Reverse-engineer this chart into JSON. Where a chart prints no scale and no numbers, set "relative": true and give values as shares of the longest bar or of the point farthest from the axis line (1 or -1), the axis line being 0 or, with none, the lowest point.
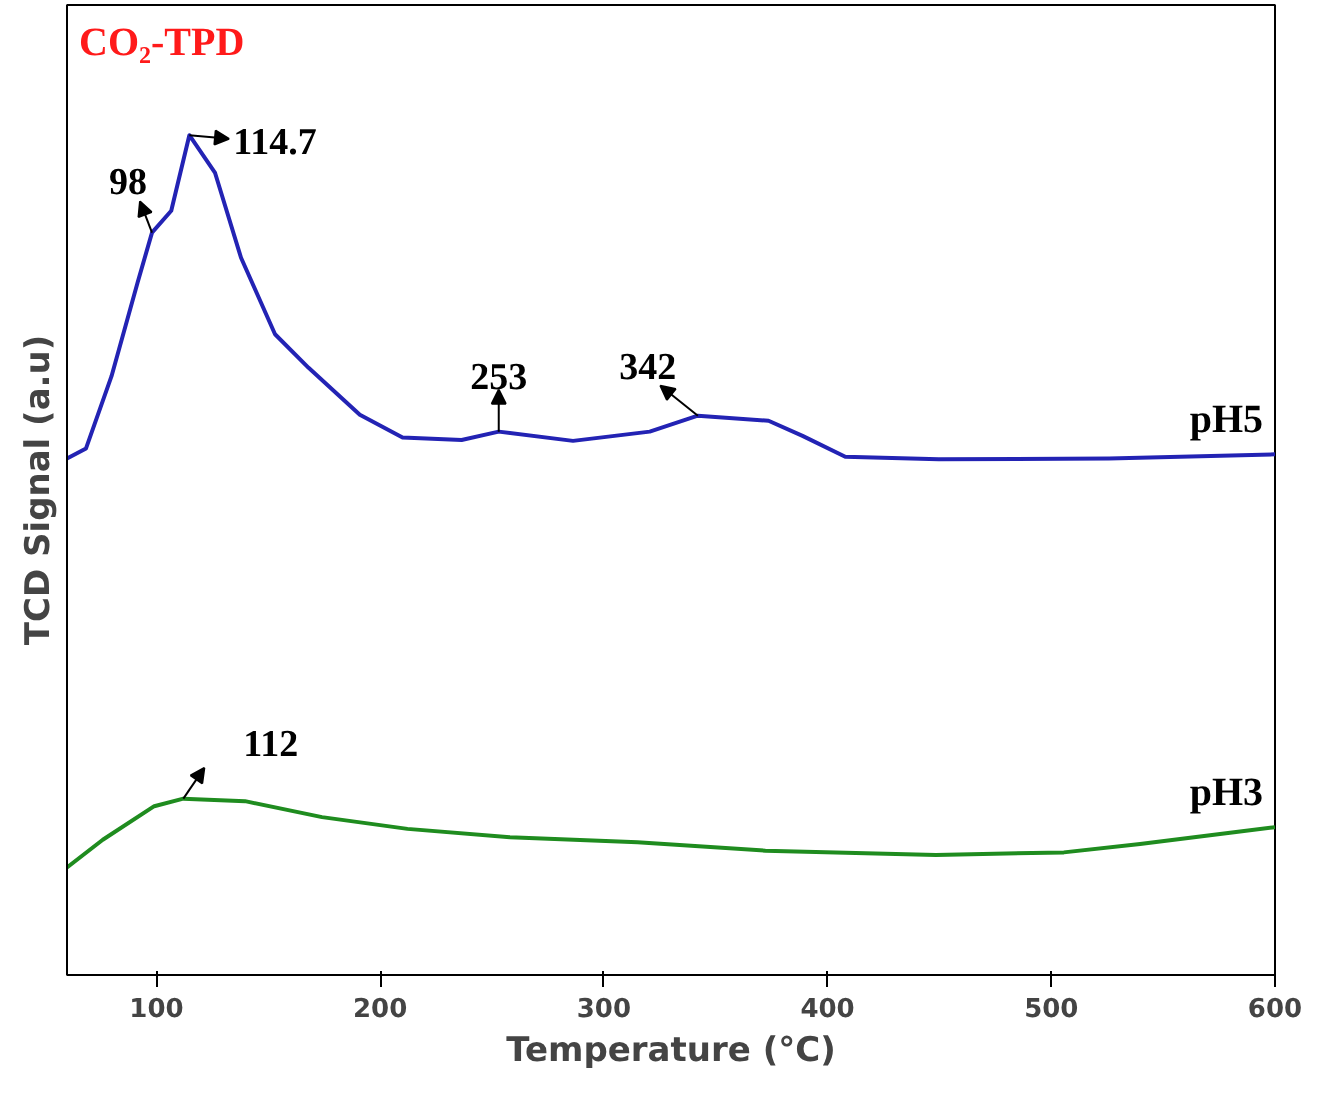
{
  "chart_data": {
    "type": "line",
    "relative": true,
    "title": "CO₂-TPD",
    "xlabel": "Temperature (°C)",
    "ylabel": "TCD Signal (a.u)",
    "xlim": [
      60,
      600
    ],
    "xticks": [
      100,
      200,
      300,
      400,
      500,
      600
    ],
    "legend": false,
    "grid": false,
    "series": [
      {
        "name": "pH5",
        "color": "#2323b4",
        "x": [
          60,
          68.5,
          79.9,
          91.5,
          98,
          106.6,
          114.7,
          126.2,
          137.8,
          153,
          168,
          190.9,
          210,
          236.4,
          253,
          286.2,
          320.5,
          342,
          373.6,
          388.8,
          407.9,
          449.7,
          525.8,
          600
        ],
        "values": [
          0.615,
          0.627,
          0.713,
          0.824,
          0.884,
          0.91,
          1.0,
          0.955,
          0.854,
          0.763,
          0.723,
          0.667,
          0.64,
          0.637,
          0.647,
          0.636,
          0.647,
          0.666,
          0.66,
          0.642,
          0.617,
          0.614,
          0.615,
          0.62
        ]
      },
      {
        "name": "pH3",
        "color": "#1f8c1f",
        "x": [
          60,
          76,
          99,
          112,
          139.6,
          174,
          212.2,
          258,
          315,
          372.2,
          448.4,
          505.6,
          539.7,
          581.7,
          600
        ],
        "values": [
          0.128,
          0.161,
          0.201,
          0.21,
          0.207,
          0.188,
          0.174,
          0.164,
          0.158,
          0.148,
          0.143,
          0.146,
          0.156,
          0.17,
          0.176
        ]
      }
    ],
    "annotations": [
      {
        "text": "98",
        "x": 98,
        "y": 0.884
      },
      {
        "text": "114.7",
        "x": 114.7,
        "y": 1.0
      },
      {
        "text": "253",
        "x": 253,
        "y": 0.647
      },
      {
        "text": "342",
        "x": 342,
        "y": 0.666
      },
      {
        "text": "112",
        "x": 112,
        "y": 0.21
      }
    ]
  }
}
